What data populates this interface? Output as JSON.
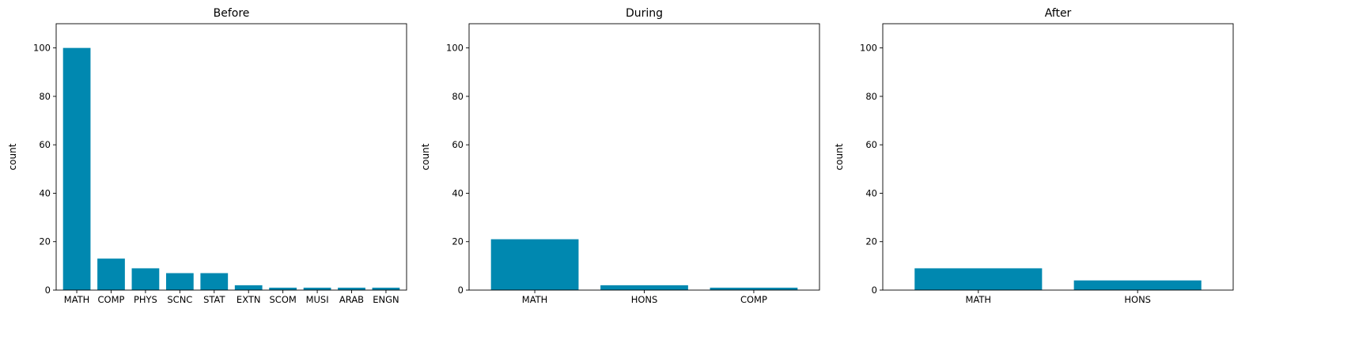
{
  "chart_data": [
    {
      "type": "bar",
      "title": "Before",
      "xlabel": "",
      "ylabel": "count",
      "ylim": [
        0,
        110
      ],
      "yticks": [
        0,
        20,
        40,
        60,
        80,
        100
      ],
      "categories": [
        "MATH",
        "COMP",
        "PHYS",
        "SCNC",
        "STAT",
        "EXTN",
        "SCOM",
        "MUSI",
        "ARAB",
        "ENGN"
      ],
      "values": [
        100,
        13,
        9,
        7,
        7,
        2,
        1,
        1,
        1,
        1
      ],
      "color": "#0088b0",
      "grid": false
    },
    {
      "type": "bar",
      "title": "During",
      "xlabel": "",
      "ylabel": "count",
      "ylim": [
        0,
        110
      ],
      "yticks": [
        0,
        20,
        40,
        60,
        80,
        100
      ],
      "categories": [
        "MATH",
        "HONS",
        "COMP"
      ],
      "values": [
        21,
        2,
        1
      ],
      "color": "#0088b0",
      "grid": false
    },
    {
      "type": "bar",
      "title": "After",
      "xlabel": "",
      "ylabel": "count",
      "ylim": [
        0,
        110
      ],
      "yticks": [
        0,
        20,
        40,
        60,
        80,
        100
      ],
      "categories": [
        "MATH",
        "HONS"
      ],
      "values": [
        9,
        4
      ],
      "color": "#0088b0",
      "grid": false
    }
  ]
}
